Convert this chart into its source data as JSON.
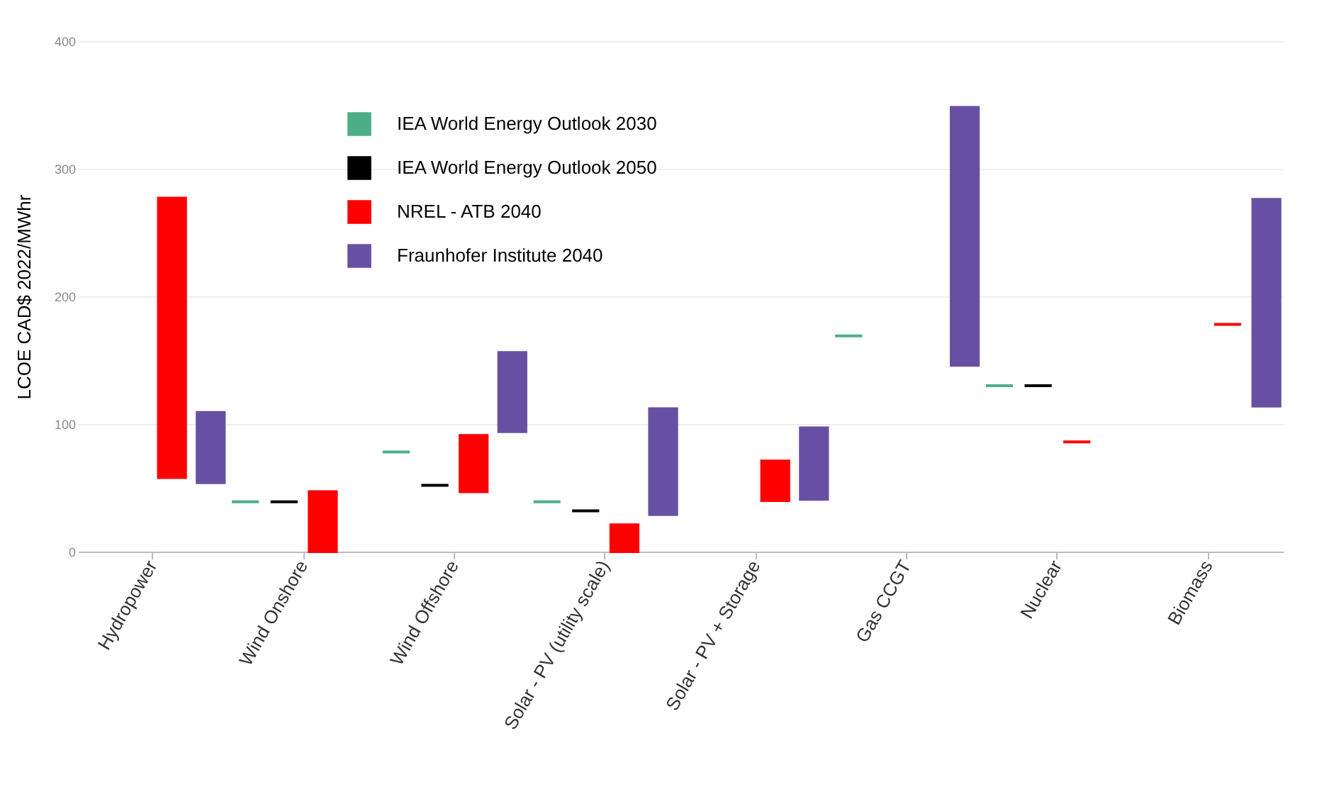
{
  "chart_data": {
    "type": "bar",
    "ylabel": "LCOE CAD$ 2022/MWhr",
    "categories": [
      "Hydropower",
      "Wind Onshore",
      "Wind Offshore",
      "Solar - PV (utility scale)",
      "Solar - PV + Storage",
      "Gas CCGT",
      "Nuclear",
      "Biomass"
    ],
    "series": [
      {
        "name": "IEA World Energy Outlook 2030",
        "color": "#4caf87",
        "base": [
          null,
          39,
          78,
          39,
          null,
          169,
          130,
          null
        ],
        "values": [
          null,
          0,
          0,
          0,
          null,
          0,
          0,
          null
        ]
      },
      {
        "name": "IEA World Energy Outlook 2050",
        "color": "#000000",
        "base": [
          null,
          39,
          52,
          32,
          null,
          null,
          130,
          null
        ],
        "values": [
          null,
          0,
          0,
          0,
          null,
          null,
          0,
          null
        ]
      },
      {
        "name": "NREL - ATB 2040",
        "color": "#ff0000",
        "base": [
          58,
          0,
          47,
          0,
          40,
          null,
          86,
          178
        ],
        "values": [
          219,
          47,
          44,
          21,
          31,
          null,
          0,
          0
        ]
      },
      {
        "name": "Fraunhofer Institute 2040",
        "color": "#6750a4",
        "base": [
          54,
          null,
          94,
          29,
          41,
          146,
          null,
          114
        ],
        "values": [
          55,
          null,
          62,
          83,
          56,
          202,
          null,
          162
        ]
      }
    ],
    "ylim": [
      0,
      400
    ],
    "yticks": [
      0,
      100,
      200,
      300,
      400
    ],
    "grid": "y",
    "legend": "top left"
  }
}
